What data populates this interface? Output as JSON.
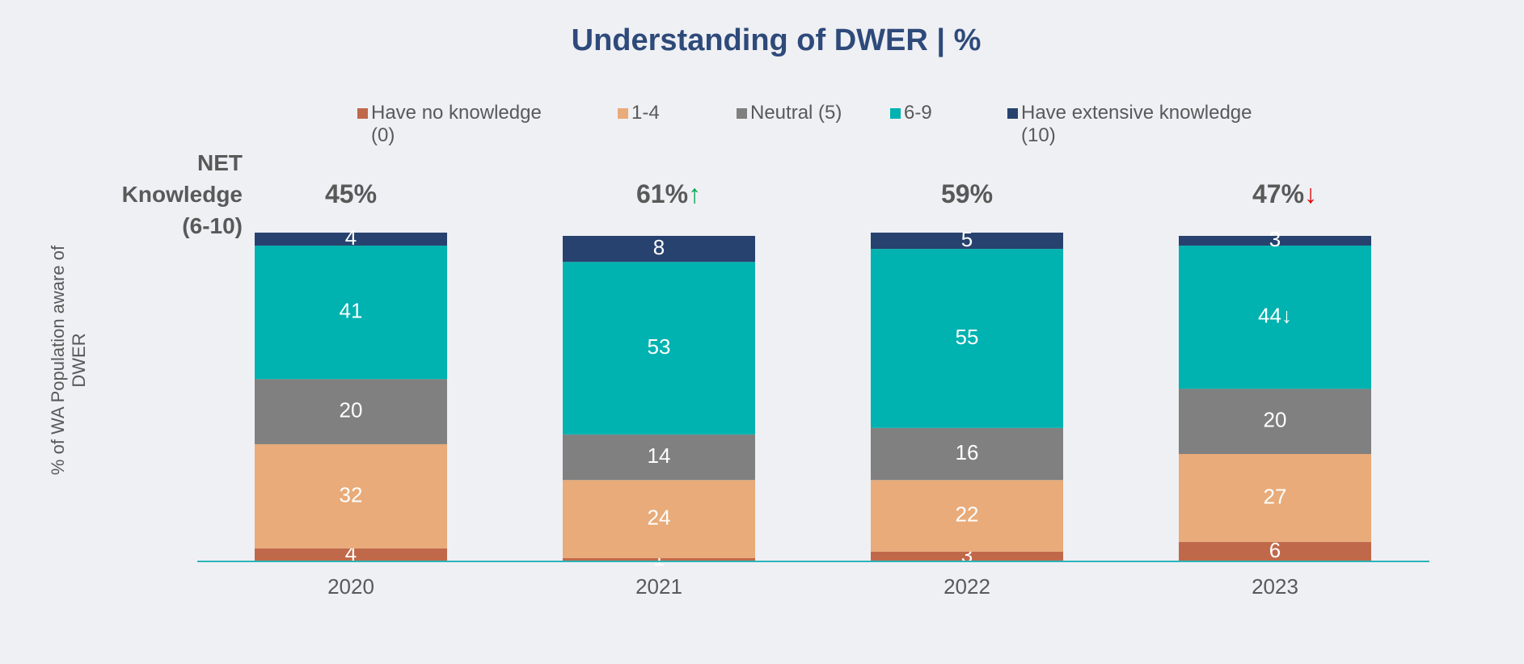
{
  "chart_data": {
    "type": "stacked_bar",
    "title": "Understanding of DWER | %",
    "y_label": "% of WA Population aware of DWER",
    "categories": [
      "2020",
      "2021",
      "2022",
      "2023"
    ],
    "ylim": [
      0,
      100
    ],
    "series": [
      {
        "name": "Have no knowledge (0)",
        "color": "#c0694a",
        "values": [
          4,
          1,
          3,
          6
        ]
      },
      {
        "name": "1-4",
        "color": "#e8ab79",
        "values": [
          32,
          24,
          22,
          27
        ]
      },
      {
        "name": "Neutral (5)",
        "color": "#808080",
        "values": [
          20,
          14,
          16,
          20
        ]
      },
      {
        "name": "6-9",
        "color": "#00b2b0",
        "values": [
          41,
          53,
          55,
          44
        ],
        "value_labels": [
          "41",
          "53",
          "55",
          "44↓"
        ]
      },
      {
        "name": "Have extensive knowledge (10)",
        "color": "#27426e",
        "values": [
          4,
          8,
          5,
          3
        ]
      }
    ],
    "net_knowledge": {
      "label": "NET Knowledge (6-10)",
      "values": [
        45,
        61,
        59,
        47
      ],
      "value_labels": [
        "45%",
        "61%",
        "59%",
        "47%"
      ],
      "arrows": [
        null,
        "↑",
        null,
        "↓"
      ],
      "arrow_colors": [
        null,
        "#00a651",
        "#e00000",
        "#e00000"
      ]
    }
  }
}
